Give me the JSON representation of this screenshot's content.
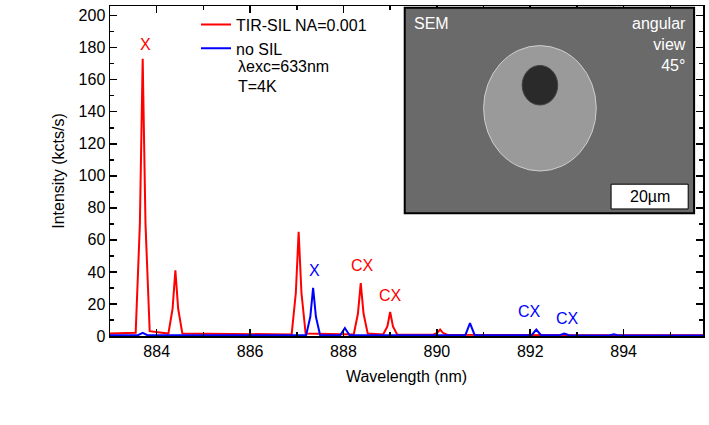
{
  "chart_data": {
    "type": "line",
    "x_label": "Wavelength (nm)",
    "y_label": "Intensity (kcts/s)",
    "xlim": [
      883,
      895.7
    ],
    "xticks": [
      884,
      886,
      888,
      890,
      892,
      894
    ],
    "ylim": [
      0,
      206
    ],
    "yticks": [
      0,
      20,
      40,
      60,
      80,
      100,
      120,
      140,
      160,
      180,
      200
    ],
    "grid": false,
    "legend": "upper left",
    "legend_notes": [
      "λexc=633nm",
      "T=4K"
    ],
    "inset_labels": [
      "SEM",
      "angular view 45°",
      "20µm"
    ],
    "series": [
      {
        "name": "TIR-SIL NA=0.001",
        "color": "#ff0000",
        "x": [
          883.0,
          883.55,
          883.64,
          883.7,
          883.76,
          883.85,
          884.25,
          884.34,
          884.4,
          884.46,
          884.55,
          886.0,
          886.89,
          886.98,
          887.04,
          887.1,
          887.19,
          888.22,
          888.31,
          888.37,
          888.43,
          888.52,
          888.85,
          888.94,
          889.0,
          889.06,
          889.15,
          889.92,
          890.01,
          890.07,
          890.13,
          890.22,
          891.5,
          893.0,
          894.5,
          895.7
        ],
        "values": [
          1.5,
          2,
          70,
          173,
          70,
          3,
          1.5,
          17,
          41,
          17,
          1.5,
          1,
          1,
          27,
          65,
          27,
          1.5,
          1,
          14,
          33,
          14,
          1.5,
          1,
          6,
          15,
          6,
          1,
          0.8,
          2,
          4,
          2,
          0.8,
          0.5,
          0.5,
          0.5,
          0.5
        ],
        "annotations": [
          {
            "text": "X",
            "x": 883.75,
            "y": 182
          },
          {
            "text": "CX",
            "x": 888.4,
            "y": 44
          },
          {
            "text": "CX",
            "x": 889.01,
            "y": 25.5
          }
        ]
      },
      {
        "name": "no SIL",
        "color": "#0000ff",
        "x": [
          883.0,
          883.6,
          883.7,
          883.8,
          885.5,
          887.2,
          887.29,
          887.35,
          887.41,
          887.5,
          887.93,
          888.03,
          888.13,
          889.5,
          890.61,
          890.71,
          890.81,
          891.5,
          892.03,
          892.13,
          892.23,
          892.63,
          892.73,
          892.83,
          893.69,
          893.79,
          893.89,
          894.8,
          895.7
        ],
        "values": [
          0.5,
          0.5,
          2,
          0.5,
          0.5,
          0.5,
          12,
          30,
          12,
          0.5,
          0.5,
          5,
          0.5,
          0.5,
          0.5,
          8,
          0.5,
          0.5,
          0.5,
          4,
          0.5,
          0.5,
          1.5,
          0.5,
          0.3,
          1,
          0.3,
          0.3,
          0.3
        ],
        "annotations": [
          {
            "text": "X",
            "x": 887.38,
            "y": 41
          },
          {
            "text": "CX",
            "x": 891.98,
            "y": 15
          },
          {
            "text": "CX",
            "x": 892.79,
            "y": 11
          }
        ]
      }
    ]
  }
}
